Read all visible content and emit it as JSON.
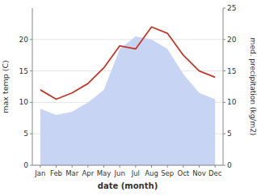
{
  "chart_data": {
    "type": "line",
    "categories": [
      "Jan",
      "Feb",
      "Mar",
      "Apr",
      "May",
      "Jun",
      "Jul",
      "Aug",
      "Sep",
      "Oct",
      "Nov",
      "Dec"
    ],
    "series": [
      {
        "type": "area",
        "color": "#c8d4f4",
        "values": [
          9.0,
          8.0,
          8.5,
          10.0,
          12.0,
          18.5,
          20.5,
          20.0,
          18.5,
          14.5,
          11.5,
          10.5
        ]
      },
      {
        "type": "line",
        "color": "#c0392b",
        "values": [
          12.0,
          10.5,
          11.5,
          13.0,
          15.5,
          19.0,
          18.5,
          22.0,
          21.0,
          17.5,
          15.0,
          14.0
        ]
      }
    ],
    "xlabel": "date (month)",
    "ylabel": "max temp (C)",
    "y2label": "med. precipitation (kg/m2)",
    "ylim": [
      0,
      25
    ],
    "yticks": [
      0,
      5,
      10,
      15,
      20
    ],
    "y2lim": [
      0,
      25
    ],
    "y2ticks": [
      0,
      5,
      10,
      15,
      20,
      25
    ]
  }
}
